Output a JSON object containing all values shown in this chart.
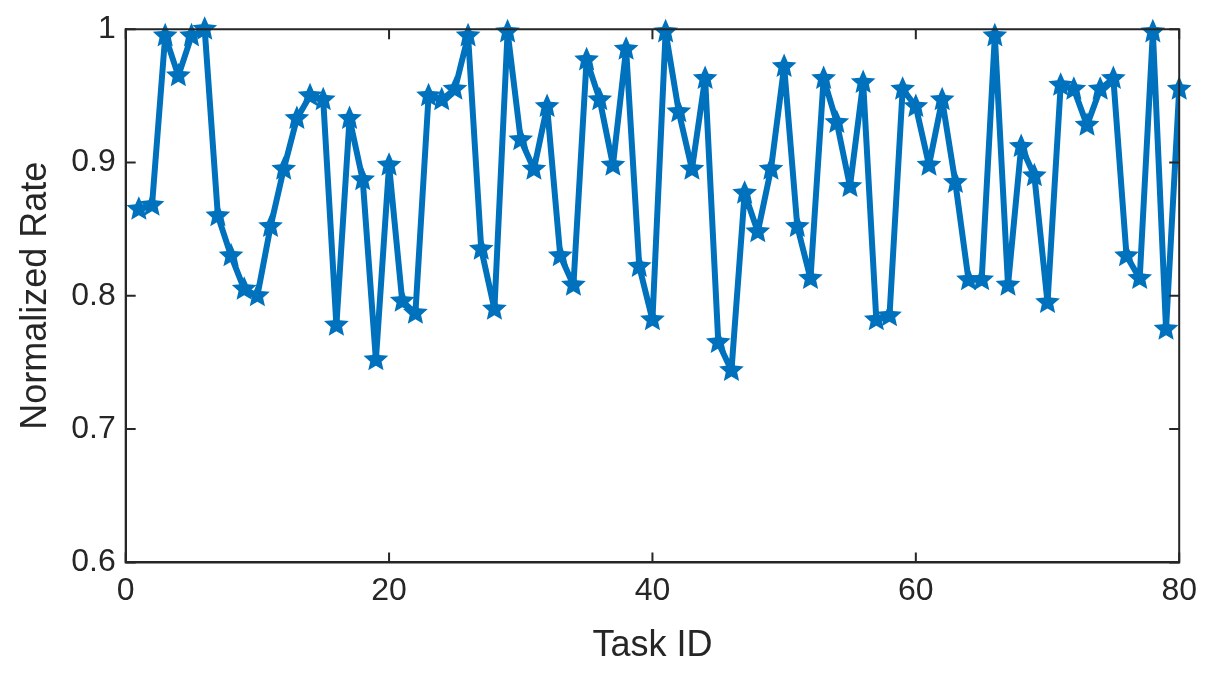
{
  "chart_data": {
    "type": "line",
    "xlabel": "Task ID",
    "ylabel": "Normalized Rate",
    "x": [
      1,
      2,
      3,
      4,
      5,
      6,
      7,
      8,
      9,
      10,
      11,
      12,
      13,
      14,
      15,
      16,
      17,
      18,
      19,
      20,
      21,
      22,
      23,
      24,
      25,
      26,
      27,
      28,
      29,
      30,
      31,
      32,
      33,
      34,
      35,
      36,
      37,
      38,
      39,
      40,
      41,
      42,
      43,
      44,
      45,
      46,
      47,
      48,
      49,
      50,
      51,
      52,
      53,
      54,
      55,
      56,
      57,
      58,
      59,
      60,
      61,
      62,
      63,
      64,
      65,
      66,
      67,
      68,
      69,
      70,
      71,
      72,
      73,
      74,
      75,
      76,
      77,
      78,
      79,
      80
    ],
    "series": [
      {
        "color": "#0072bd",
        "values": [
          0.865,
          0.868,
          0.995,
          0.965,
          0.995,
          1.0,
          0.86,
          0.83,
          0.805,
          0.8,
          0.852,
          0.895,
          0.933,
          0.95,
          0.947,
          0.778,
          0.933,
          0.887,
          0.752,
          0.898,
          0.796,
          0.787,
          0.95,
          0.947,
          0.955,
          0.995,
          0.835,
          0.79,
          0.998,
          0.917,
          0.895,
          0.942,
          0.83,
          0.808,
          0.977,
          0.947,
          0.898,
          0.985,
          0.822,
          0.782,
          0.998,
          0.938,
          0.895,
          0.963,
          0.765,
          0.744,
          0.877,
          0.848,
          0.895,
          0.972,
          0.852,
          0.813,
          0.963,
          0.93,
          0.882,
          0.96,
          0.782,
          0.785,
          0.955,
          0.942,
          0.898,
          0.947,
          0.885,
          0.812,
          0.812,
          0.995,
          0.808,
          0.912,
          0.89,
          0.795,
          0.958,
          0.955,
          0.928,
          0.955,
          0.963,
          0.83,
          0.813,
          0.998,
          0.775,
          0.955
        ]
      }
    ],
    "xlim": [
      0,
      80
    ],
    "xticks": [
      0,
      20,
      40,
      60,
      80
    ],
    "ylim": [
      0.6,
      1
    ],
    "yticks": [
      0.6,
      0.7,
      0.8,
      0.9,
      1
    ],
    "grid": false,
    "legend": false,
    "marker": "star",
    "line_style": "solid"
  }
}
